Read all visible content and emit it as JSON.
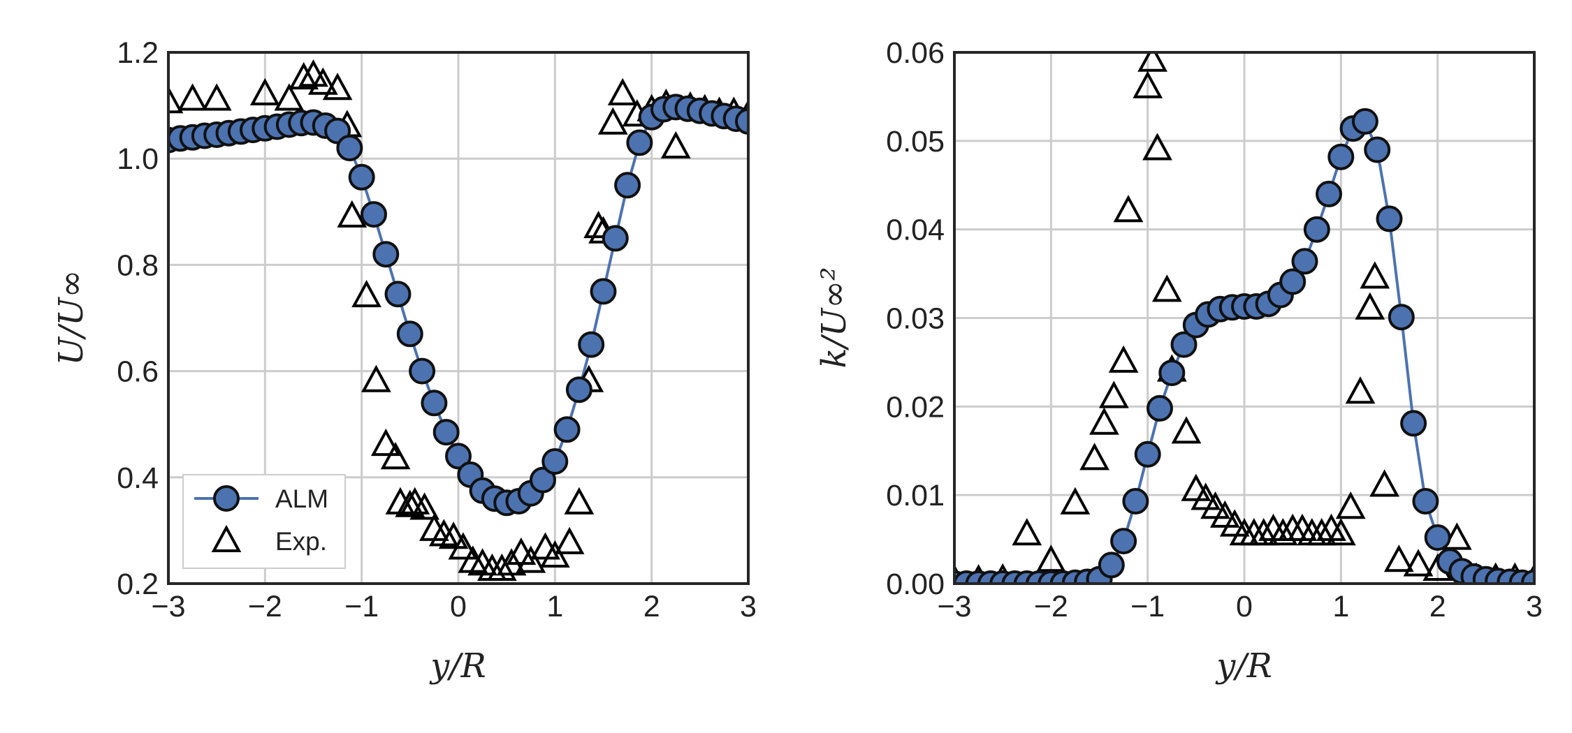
{
  "chart_data": [
    {
      "type": "line",
      "xlabel": "y/R",
      "ylabel": "U/U∞",
      "xlim": [
        -3,
        3
      ],
      "ylim": [
        0.2,
        1.2
      ],
      "xticks": [
        -3,
        -2,
        -1,
        0,
        1,
        2,
        3
      ],
      "xtick_labels": [
        "−3",
        "−2",
        "−1",
        "0",
        "1",
        "2",
        "3"
      ],
      "yticks": [
        0.2,
        0.4,
        0.6,
        0.8,
        1.0,
        1.2
      ],
      "ytick_labels": [
        "0.2",
        "0.4",
        "0.6",
        "0.8",
        "1.0",
        "1.2"
      ],
      "grid": true,
      "legend": {
        "placement": "lower-left",
        "entries": [
          "ALM",
          "Exp."
        ]
      },
      "series": [
        {
          "name": "ALM",
          "marker": "circle",
          "color": "#4C72B0",
          "x": [
            -3.0,
            -2.875,
            -2.75,
            -2.625,
            -2.5,
            -2.375,
            -2.25,
            -2.125,
            -2.0,
            -1.875,
            -1.75,
            -1.625,
            -1.5,
            -1.375,
            -1.25,
            -1.125,
            -1.0,
            -0.875,
            -0.75,
            -0.625,
            -0.5,
            -0.375,
            -0.25,
            -0.125,
            0.0,
            0.125,
            0.25,
            0.375,
            0.5,
            0.625,
            0.75,
            0.875,
            1.0,
            1.125,
            1.25,
            1.375,
            1.5,
            1.625,
            1.75,
            1.875,
            2.0,
            2.125,
            2.25,
            2.375,
            2.5,
            2.625,
            2.75,
            2.875,
            3.0
          ],
          "y": [
            1.035,
            1.038,
            1.04,
            1.043,
            1.045,
            1.048,
            1.051,
            1.054,
            1.057,
            1.06,
            1.064,
            1.067,
            1.068,
            1.062,
            1.052,
            1.02,
            0.965,
            0.895,
            0.82,
            0.745,
            0.67,
            0.6,
            0.54,
            0.485,
            0.44,
            0.405,
            0.375,
            0.36,
            0.352,
            0.355,
            0.37,
            0.395,
            0.43,
            0.49,
            0.565,
            0.65,
            0.75,
            0.85,
            0.95,
            1.03,
            1.078,
            1.093,
            1.097,
            1.094,
            1.09,
            1.085,
            1.08,
            1.075,
            1.07
          ]
        },
        {
          "name": "Exp.",
          "marker": "triangle",
          "color": "#000000",
          "x": [
            -3.0,
            -2.75,
            -2.5,
            -2.0,
            -1.75,
            -1.6,
            -1.5,
            -1.4,
            -1.25,
            -1.15,
            -1.1,
            -0.95,
            -0.85,
            -0.75,
            -0.65,
            -0.6,
            -0.5,
            -0.45,
            -0.35,
            -0.25,
            -0.15,
            -0.05,
            0.05,
            0.15,
            0.25,
            0.35,
            0.45,
            0.55,
            0.65,
            0.75,
            0.9,
            1.0,
            1.15,
            1.25,
            1.35,
            1.45,
            1.5,
            1.6,
            1.7,
            1.85,
            2.0,
            2.15,
            2.25,
            2.4,
            2.55,
            2.7,
            2.85,
            3.0
          ],
          "y": [
            1.105,
            1.11,
            1.11,
            1.12,
            1.11,
            1.15,
            1.155,
            1.14,
            1.13,
            1.06,
            0.89,
            0.74,
            0.58,
            0.46,
            0.435,
            0.35,
            0.345,
            0.35,
            0.34,
            0.3,
            0.29,
            0.285,
            0.265,
            0.24,
            0.235,
            0.225,
            0.225,
            0.235,
            0.255,
            0.24,
            0.265,
            0.25,
            0.275,
            0.35,
            0.58,
            0.87,
            0.86,
            1.065,
            1.12,
            1.08,
            1.09,
            1.1,
            1.02,
            1.095,
            1.09,
            1.085,
            1.085,
            1.08
          ]
        }
      ]
    },
    {
      "type": "line",
      "xlabel": "y/R",
      "ylabel": "k/U∞²",
      "xlim": [
        -3,
        3
      ],
      "ylim": [
        0.0,
        0.06
      ],
      "xticks": [
        -3,
        -2,
        -1,
        0,
        1,
        2,
        3
      ],
      "xtick_labels": [
        "−3",
        "−2",
        "−1",
        "0",
        "1",
        "2",
        "3"
      ],
      "yticks": [
        0.0,
        0.01,
        0.02,
        0.03,
        0.04,
        0.05,
        0.06
      ],
      "ytick_labels": [
        "0.00",
        "0.01",
        "0.02",
        "0.03",
        "0.04",
        "0.05",
        "0.06"
      ],
      "grid": true,
      "series": [
        {
          "name": "ALM",
          "marker": "circle",
          "color": "#4C72B0",
          "x": [
            -3.0,
            -2.875,
            -2.75,
            -2.625,
            -2.5,
            -2.375,
            -2.25,
            -2.125,
            -2.0,
            -1.875,
            -1.75,
            -1.625,
            -1.5,
            -1.375,
            -1.25,
            -1.125,
            -1.0,
            -0.875,
            -0.75,
            -0.625,
            -0.5,
            -0.375,
            -0.25,
            -0.125,
            0.0,
            0.125,
            0.25,
            0.375,
            0.5,
            0.625,
            0.75,
            0.875,
            1.0,
            1.125,
            1.25,
            1.375,
            1.5,
            1.625,
            1.75,
            1.875,
            2.0,
            2.125,
            2.25,
            2.375,
            2.5,
            2.625,
            2.75,
            2.875,
            3.0
          ],
          "y": [
            0.0,
            0.0,
            0.0,
            0.0,
            0.0,
            0.0,
            0.0,
            0.0,
            0.0,
            0.0,
            0.0001,
            0.0002,
            0.0005,
            0.0021,
            0.0048,
            0.0093,
            0.0146,
            0.0198,
            0.0238,
            0.027,
            0.0292,
            0.0304,
            0.031,
            0.0312,
            0.0313,
            0.0313,
            0.0316,
            0.0326,
            0.0341,
            0.0364,
            0.04,
            0.044,
            0.0482,
            0.0514,
            0.0522,
            0.049,
            0.0412,
            0.0301,
            0.0181,
            0.0093,
            0.0052,
            0.0025,
            0.0014,
            0.0008,
            0.0005,
            0.0003,
            0.0002,
            0.0001,
            0.0001
          ]
        },
        {
          "name": "Exp.",
          "marker": "triangle",
          "color": "#000000",
          "x": [
            -3.0,
            -2.75,
            -2.5,
            -2.25,
            -2.0,
            -1.75,
            -1.55,
            -1.45,
            -1.35,
            -1.25,
            -1.2,
            -1.0,
            -0.95,
            -0.9,
            -0.8,
            -0.75,
            -0.6,
            -0.5,
            -0.4,
            -0.3,
            -0.2,
            -0.1,
            0.0,
            0.1,
            0.2,
            0.3,
            0.4,
            0.5,
            0.6,
            0.7,
            0.8,
            0.9,
            1.0,
            1.1,
            1.2,
            1.3,
            1.35,
            1.45,
            1.6,
            1.8,
            2.0,
            2.2,
            2.4,
            2.6,
            2.8,
            3.0
          ],
          "y": [
            0.0003,
            0.0003,
            0.0004,
            0.0055,
            0.0025,
            0.009,
            0.014,
            0.018,
            0.021,
            0.025,
            0.042,
            0.056,
            0.059,
            0.049,
            0.033,
            0.024,
            0.017,
            0.0105,
            0.0095,
            0.0085,
            0.0075,
            0.0065,
            0.0055,
            0.0055,
            0.0055,
            0.006,
            0.0055,
            0.006,
            0.006,
            0.0055,
            0.0055,
            0.006,
            0.0055,
            0.0085,
            0.0215,
            0.031,
            0.0345,
            0.011,
            0.0025,
            0.002,
            0.0015,
            0.005,
            0.0005,
            0.0005,
            0.0005,
            0.0004
          ]
        }
      ]
    }
  ]
}
